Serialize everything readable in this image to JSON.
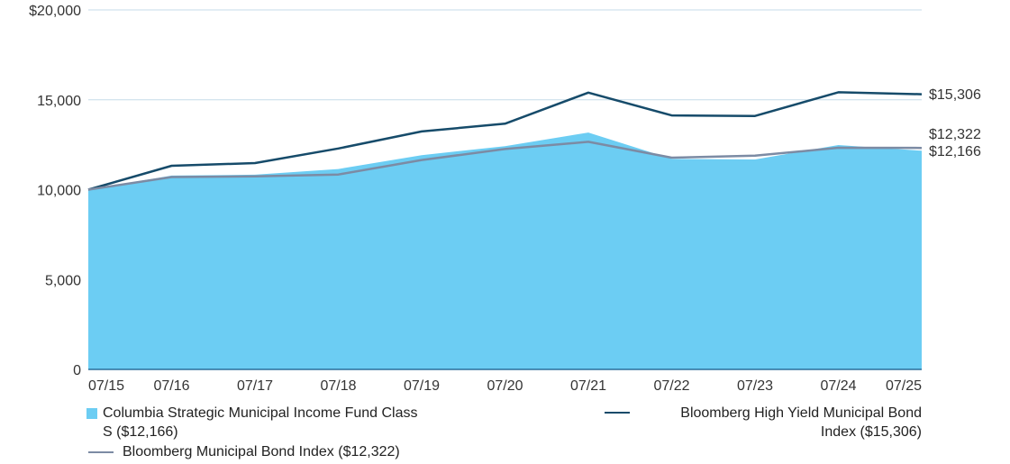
{
  "chart_data": {
    "type": "area",
    "title": "",
    "xlabel": "",
    "ylabel": "",
    "categories": [
      "07/15",
      "07/16",
      "07/17",
      "07/18",
      "07/19",
      "07/20",
      "07/21",
      "07/22",
      "07/23",
      "07/24",
      "07/25"
    ],
    "y_ticks": [
      0,
      5000,
      10000,
      15000,
      20000
    ],
    "y_tick_labels": [
      "0",
      "5,000",
      "10,000",
      "15,000",
      "$20,000"
    ],
    "ylim": [
      0,
      20000
    ],
    "grid": true,
    "series": [
      {
        "name": "Columbia Strategic Municipal Income Fund Class S ($12,166)",
        "style": "area",
        "color": "#6ccdf3",
        "values": [
          10000,
          10780,
          10830,
          11150,
          11920,
          12420,
          13180,
          11710,
          11680,
          12480,
          12166
        ],
        "end_label": "$12,166"
      },
      {
        "name": "Bloomberg High Yield Municipal Bond Index ($15,306)",
        "style": "line",
        "color": "#164b6a",
        "values": [
          10000,
          11330,
          11480,
          12290,
          13240,
          13670,
          15400,
          14130,
          14100,
          15420,
          15306
        ],
        "end_label": "$15,306"
      },
      {
        "name": "Bloomberg Municipal Bond Index ($12,322)",
        "style": "line",
        "color": "#7c8ba4",
        "values": [
          10000,
          10700,
          10740,
          10840,
          11650,
          12260,
          12660,
          11780,
          11890,
          12330,
          12322
        ],
        "end_label": "$12,322"
      }
    ],
    "legend": {
      "placement": "bottom",
      "fund_line1": "Columbia Strategic Municipal Income Fund Class",
      "fund_line2": "S ($12,166)",
      "hy_line1": "Bloomberg High Yield Municipal Bond",
      "hy_line2": "Index ($15,306)",
      "muni": "Bloomberg Municipal Bond Index ($12,322)"
    }
  }
}
